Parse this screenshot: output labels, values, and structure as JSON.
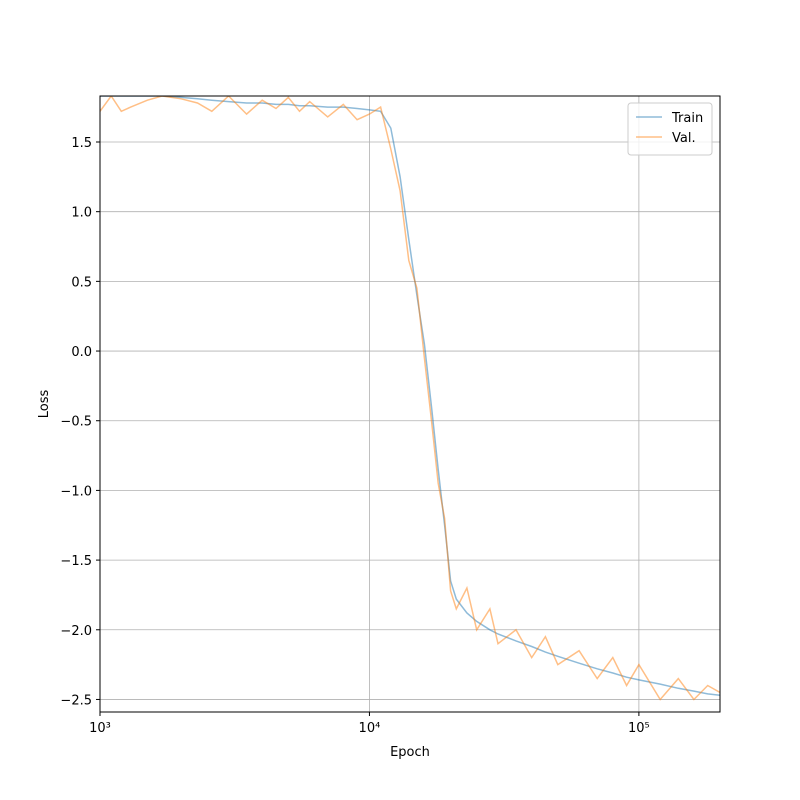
{
  "chart_data": {
    "type": "line",
    "x_label": "Epoch",
    "y_label": "Loss",
    "x": [
      1000,
      1100,
      1200,
      1300,
      1500,
      1700,
      2000,
      2300,
      2600,
      3000,
      3500,
      4000,
      4500,
      5000,
      5500,
      6000,
      7000,
      8000,
      9000,
      10000,
      11000,
      12000,
      13000,
      14000,
      15000,
      16000,
      17000,
      18000,
      19000,
      20000,
      21000,
      23000,
      25000,
      28000,
      30000,
      35000,
      40000,
      45000,
      50000,
      60000,
      70000,
      80000,
      90000,
      100000,
      120000,
      140000,
      160000,
      180000,
      200000
    ],
    "series": [
      {
        "name": "Train",
        "color": "#1f77b4",
        "values": [
          1.83,
          1.83,
          1.83,
          1.83,
          1.83,
          1.83,
          1.82,
          1.81,
          1.8,
          1.79,
          1.78,
          1.78,
          1.77,
          1.77,
          1.76,
          1.76,
          1.75,
          1.75,
          1.74,
          1.73,
          1.72,
          1.6,
          1.25,
          0.8,
          0.4,
          0.05,
          -0.4,
          -0.85,
          -1.25,
          -1.65,
          -1.78,
          -1.88,
          -1.94,
          -2.0,
          -2.03,
          -2.08,
          -2.12,
          -2.16,
          -2.19,
          -2.24,
          -2.28,
          -2.31,
          -2.34,
          -2.36,
          -2.39,
          -2.42,
          -2.44,
          -2.46,
          -2.47
        ]
      },
      {
        "name": "Val.",
        "color": "#ff7f0e",
        "values": [
          1.72,
          1.83,
          1.72,
          1.75,
          1.8,
          1.83,
          1.81,
          1.78,
          1.72,
          1.83,
          1.7,
          1.8,
          1.74,
          1.82,
          1.72,
          1.79,
          1.68,
          1.77,
          1.66,
          1.7,
          1.75,
          1.45,
          1.15,
          0.65,
          0.45,
          -0.05,
          -0.5,
          -0.95,
          -1.2,
          -1.72,
          -1.85,
          -1.7,
          -2.0,
          -1.85,
          -2.1,
          -2.0,
          -2.2,
          -2.05,
          -2.25,
          -2.15,
          -2.35,
          -2.2,
          -2.4,
          -2.25,
          -2.5,
          -2.35,
          -2.5,
          -2.4,
          -2.45
        ]
      }
    ],
    "xlim": [
      1000,
      200000
    ],
    "x_scale": "log",
    "xticks": [
      {
        "value": 1000,
        "label": "10³"
      },
      {
        "value": 10000,
        "label": "10⁴"
      },
      {
        "value": 100000,
        "label": "10⁵"
      }
    ],
    "ylim": [
      -2.59,
      1.83
    ],
    "yticks": [
      {
        "value": -2.5,
        "label": "−2.5"
      },
      {
        "value": -2,
        "label": "−2.0"
      },
      {
        "value": -1.5,
        "label": "−1.5"
      },
      {
        "value": -1,
        "label": "−1.0"
      },
      {
        "value": -0.5,
        "label": "−0.5"
      },
      {
        "value": 0,
        "label": "0.0"
      },
      0.5,
      {
        "value": 1,
        "label": "1.0"
      },
      1.5
    ],
    "grid": true,
    "legend": "upper right",
    "line_opacity": 0.5
  }
}
